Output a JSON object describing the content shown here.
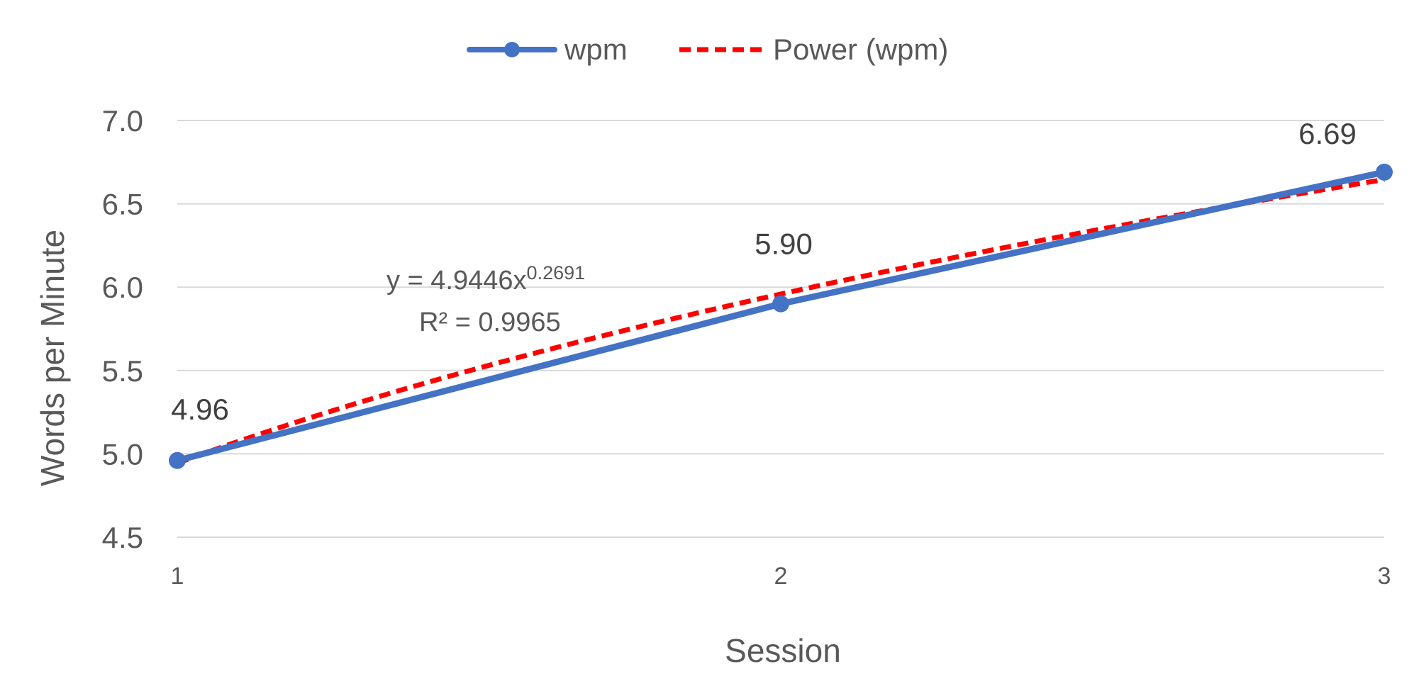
{
  "chart_data": {
    "type": "line",
    "title": "",
    "xlabel": "Session",
    "ylabel": "Words per Minute",
    "x": [
      1,
      2,
      3
    ],
    "xlim": [
      1,
      3
    ],
    "ylim": [
      4.5,
      7.0
    ],
    "y_ticks": [
      "4.5",
      "5.0",
      "5.5",
      "6.0",
      "6.5",
      "7.0"
    ],
    "x_ticks": [
      "1",
      "2",
      "3"
    ],
    "grid": "horizontal",
    "legend_position": "top",
    "series": [
      {
        "name": "wpm",
        "values": [
          4.96,
          5.9,
          6.69
        ],
        "data_labels": [
          "4.96",
          "5.90",
          "6.69"
        ],
        "color": "#4472C4",
        "style": "solid-with-markers"
      }
    ],
    "trendline": {
      "name": "Power (wpm)",
      "type": "power",
      "coefficient": 4.9446,
      "exponent": 0.2691,
      "color": "#FF0000",
      "style": "dashed",
      "equation_base": "y = 4.9446x",
      "equation_exponent": "0.2691",
      "r_squared_text": "R² = 0.9965"
    },
    "colors": {
      "grid": "#D9D9D9",
      "text": "#595959",
      "data_label": "#404040"
    }
  }
}
